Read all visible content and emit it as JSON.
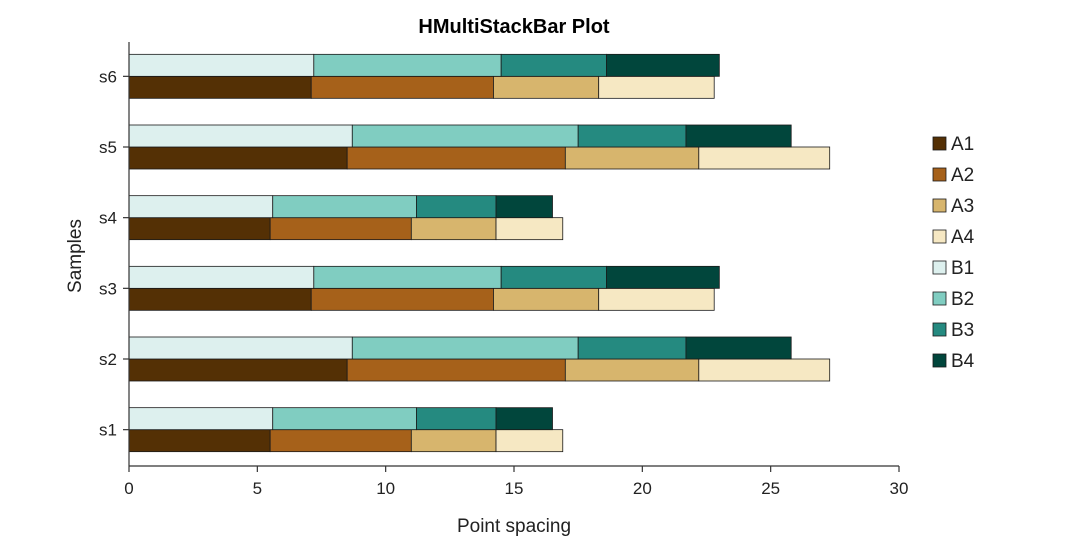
{
  "chart_data": {
    "type": "bar",
    "orientation": "horizontal",
    "stacked": true,
    "title": "HMultiStackBar Plot",
    "xlabel": "Point spacing",
    "ylabel": "Samples",
    "xlim": [
      0,
      30
    ],
    "xticks": [
      "0",
      "5",
      "10",
      "15",
      "20",
      "25",
      "30"
    ],
    "categories": [
      "s1",
      "s2",
      "s3",
      "s4",
      "s5",
      "s6"
    ],
    "legend_position": "right",
    "grid": false,
    "groups": [
      {
        "id": "A",
        "series": [
          {
            "name": "A1",
            "color": "#543005",
            "values": [
              5.5,
              8.5,
              7.1,
              5.5,
              8.5,
              7.1
            ]
          },
          {
            "name": "A2",
            "color": "#a6611a",
            "values": [
              5.5,
              8.5,
              7.1,
              5.5,
              8.5,
              7.1
            ]
          },
          {
            "name": "A3",
            "color": "#d7b56d",
            "values": [
              3.3,
              5.2,
              4.1,
              3.3,
              5.2,
              4.1
            ]
          },
          {
            "name": "A4",
            "color": "#f6e8c3",
            "values": [
              2.6,
              5.1,
              4.5,
              2.6,
              5.1,
              4.5
            ]
          }
        ]
      },
      {
        "id": "B",
        "series": [
          {
            "name": "B1",
            "color": "#ddf0ee",
            "values": [
              5.6,
              8.7,
              7.2,
              5.6,
              8.7,
              7.2
            ]
          },
          {
            "name": "B2",
            "color": "#80cdc1",
            "values": [
              5.6,
              8.8,
              7.3,
              5.6,
              8.8,
              7.3
            ]
          },
          {
            "name": "B3",
            "color": "#258a80",
            "values": [
              3.1,
              4.2,
              4.1,
              3.1,
              4.2,
              4.1
            ]
          },
          {
            "name": "B4",
            "color": "#01463c",
            "values": [
              2.2,
              4.1,
              4.4,
              2.2,
              4.1,
              4.4
            ]
          }
        ]
      }
    ]
  }
}
